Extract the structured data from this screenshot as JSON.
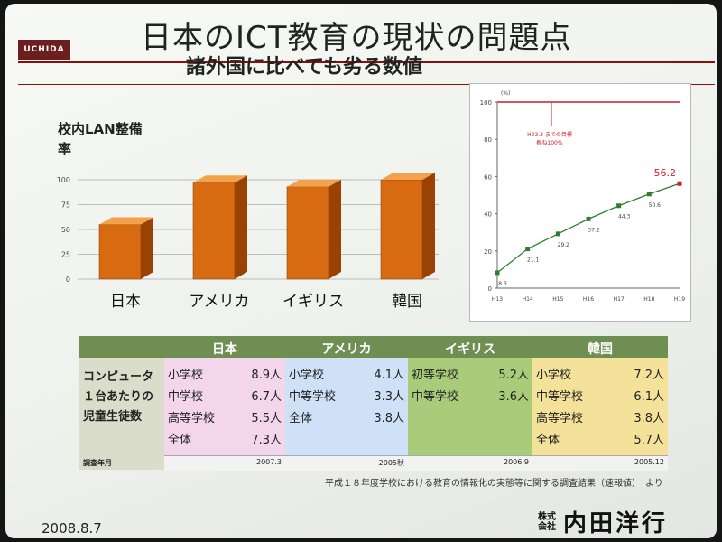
{
  "title": "日本のICT教育の現状の問題点",
  "subtitle": "諸外国に比べても劣る数値",
  "brand_logo": "UCHIDA",
  "bar_section_label_line1": "校内LAN整備",
  "bar_section_label_line2": "率",
  "line_chart_note_line1": "H23.3 までの目標",
  "line_chart_note_line2": "概ね100%",
  "table": {
    "row_label_lines": [
      "コンピュータ",
      "１台あたりの",
      "児童生徒数"
    ],
    "survey_label": "調査年月",
    "columns": [
      {
        "country": "日本",
        "rows": [
          {
            "school": "小学校",
            "value": "8.9人"
          },
          {
            "school": "中学校",
            "value": "6.7人"
          },
          {
            "school": "高等学校",
            "value": "5.5人"
          },
          {
            "school": "全体",
            "value": "7.3人"
          }
        ],
        "survey_date": "2007.3"
      },
      {
        "country": "アメリカ",
        "rows": [
          {
            "school": "小学校",
            "value": "4.1人"
          },
          {
            "school": "中等学校",
            "value": "3.3人"
          },
          {
            "school": "全体",
            "value": "3.8人"
          }
        ],
        "survey_date": "2005秋"
      },
      {
        "country": "イギリス",
        "rows": [
          {
            "school": "初等学校",
            "value": "5.2人"
          },
          {
            "school": "中等学校",
            "value": "3.6人"
          }
        ],
        "survey_date": "2006.9"
      },
      {
        "country": "韓国",
        "rows": [
          {
            "school": "小学校",
            "value": "7.2人"
          },
          {
            "school": "中等学校",
            "value": "6.1人"
          },
          {
            "school": "高等学校",
            "value": "3.8人"
          },
          {
            "school": "全体",
            "value": "5.7人"
          }
        ],
        "survey_date": "2005.12"
      }
    ]
  },
  "footnote": "平成１８年度学校における教育の情報化の実態等に関する調査結果（速報値）　より",
  "date": "2008.8.7",
  "company_small_1": "株式",
  "company_small_2": "会社",
  "company_name": "内田洋行",
  "colors": {
    "bar_front": "#d86a12",
    "bar_side": "#9a4204",
    "bar_top": "#f2a24c",
    "line": "#2e7d32",
    "target": "#d11a2a",
    "header_bg": "#6f8f52",
    "japan_bg": "#f3d6ec",
    "america_bg": "#cfe1f7",
    "uk_bg": "#a9cc7a",
    "korea_bg": "#f5e29a"
  },
  "chart_data": [
    {
      "type": "bar",
      "categories": [
        "日本",
        "アメリカ",
        "イギリス",
        "韓国"
      ],
      "values": [
        55,
        97,
        93,
        100
      ],
      "yticks": [
        0,
        25,
        50,
        75,
        100
      ],
      "ylim": [
        0,
        100
      ],
      "title": "校内LAN整備率",
      "grid": true
    },
    {
      "type": "line",
      "x": [
        "H13",
        "H14",
        "H15",
        "H16",
        "H17",
        "H18",
        "H19"
      ],
      "values": [
        8.3,
        21.1,
        29.2,
        37.2,
        44.3,
        50.6,
        56.2
      ],
      "value_labels": [
        "8.3",
        "21.1",
        "29.2",
        "37.2",
        "44.3",
        "50.6",
        "56.2"
      ],
      "ylim": [
        0,
        100
      ],
      "yticks": [
        0,
        20,
        40,
        60,
        80,
        100
      ],
      "unit_label": "(%)",
      "target_value": 100,
      "grid": false
    }
  ]
}
